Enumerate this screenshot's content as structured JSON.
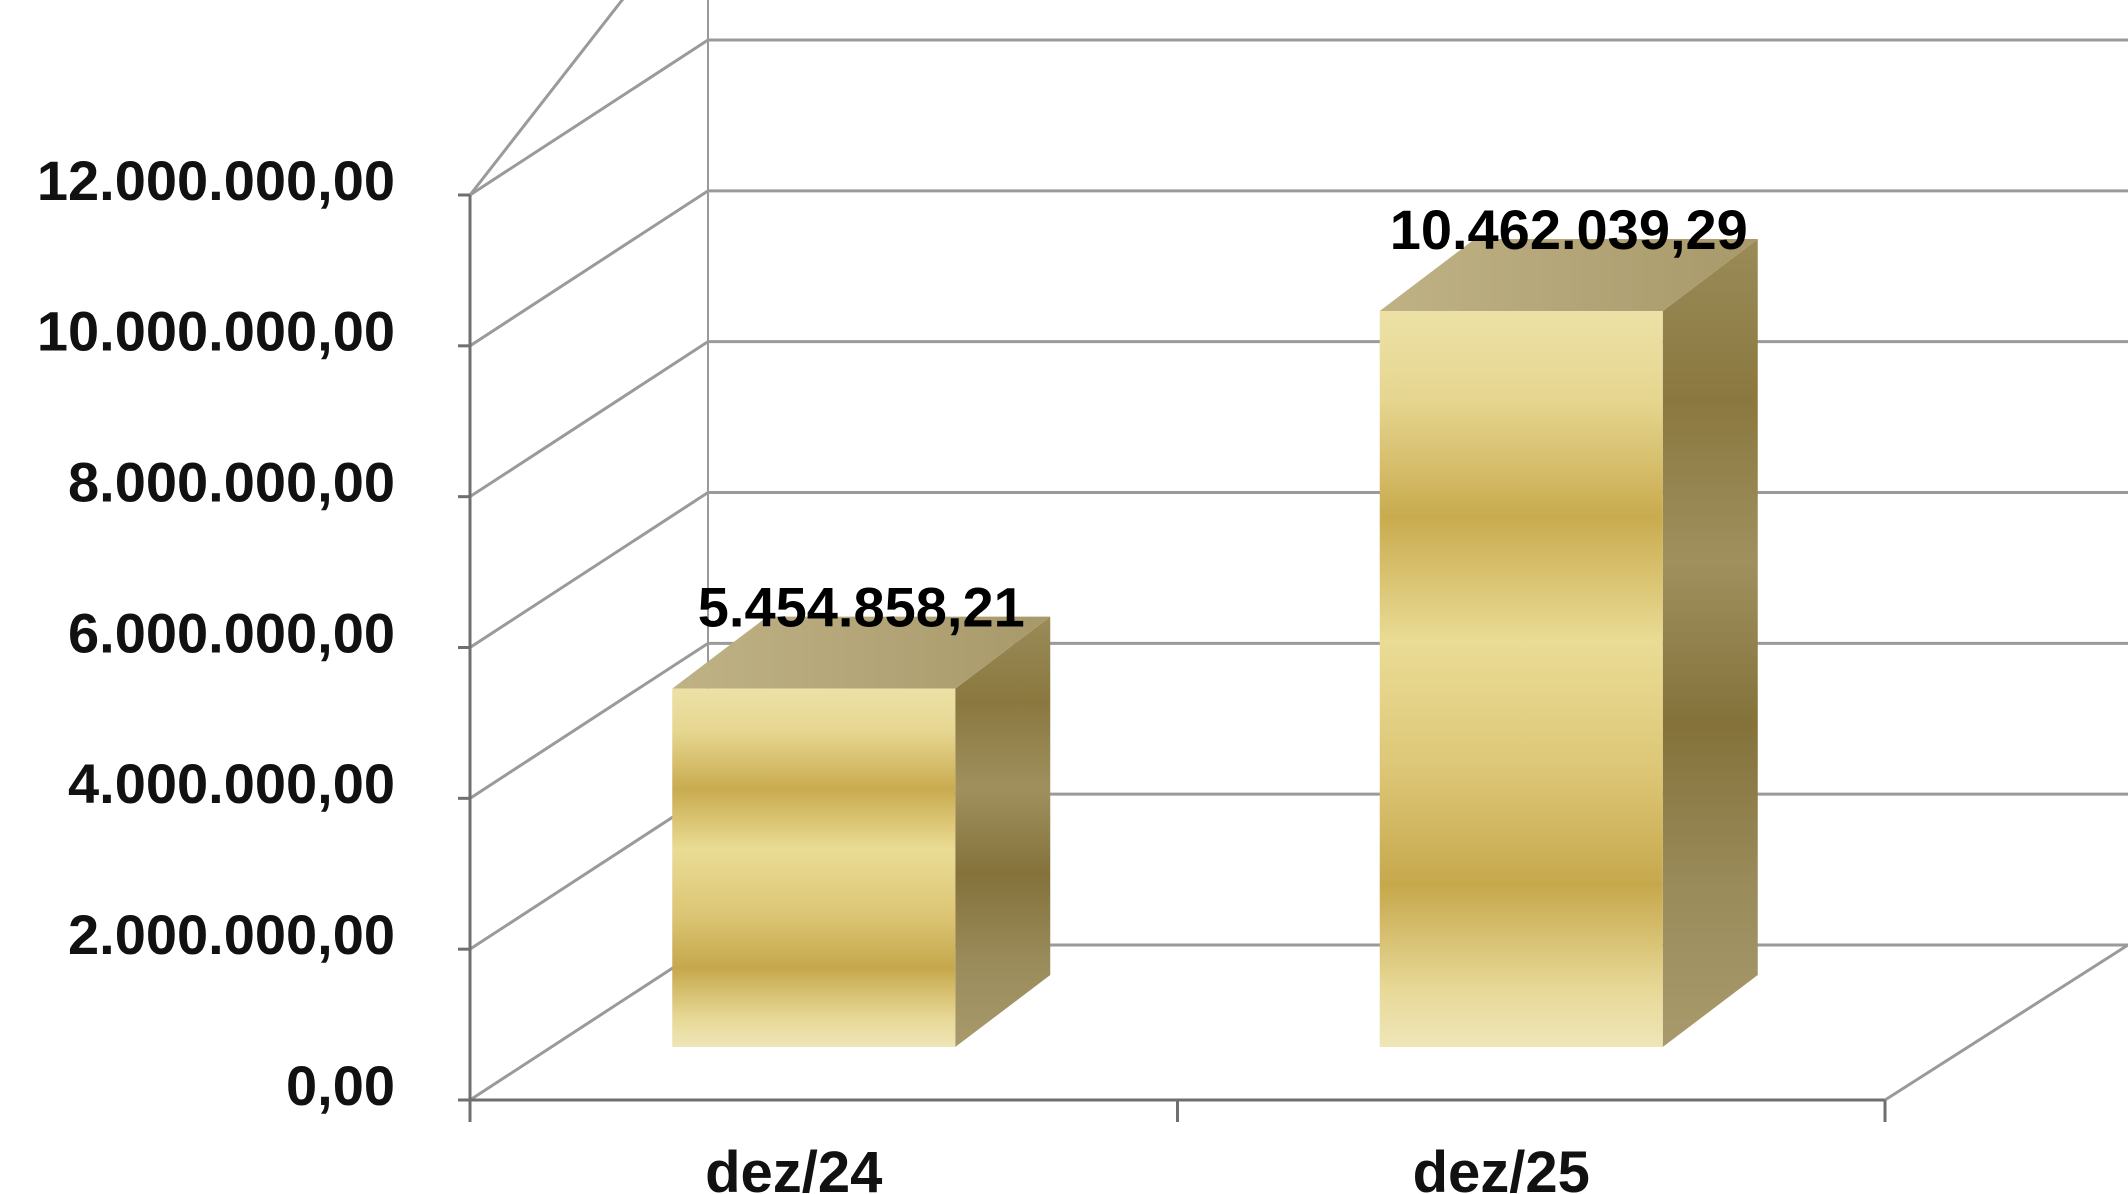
{
  "chart_data": {
    "type": "bar",
    "style": "3d-column",
    "categories": [
      "dez/24",
      "dez/25"
    ],
    "values": [
      5454858.21,
      10462039.29
    ],
    "data_labels": [
      "5.454.858,21",
      "10.462.039,29"
    ],
    "title": "",
    "xlabel": "",
    "ylabel": "",
    "ylim": [
      0,
      12000000
    ],
    "yticks": [
      0,
      2000000,
      4000000,
      6000000,
      8000000,
      10000000,
      12000000
    ],
    "ytick_labels": [
      "0,00",
      "2.000.000,00",
      "4.000.000,00",
      "6.000.000,00",
      "8.000.000,00",
      "10.000.000,00",
      "12.000.000,00"
    ],
    "grid": true,
    "legend": "none",
    "colors": {
      "bar_light": "#e9dc9c",
      "bar_mid": "#c9ac52",
      "bar_side": "#8a7a45",
      "bar_top": "#b3a676",
      "grid": "#9a9a9a",
      "axis": "#6f6f6f",
      "text": "#111111"
    }
  }
}
